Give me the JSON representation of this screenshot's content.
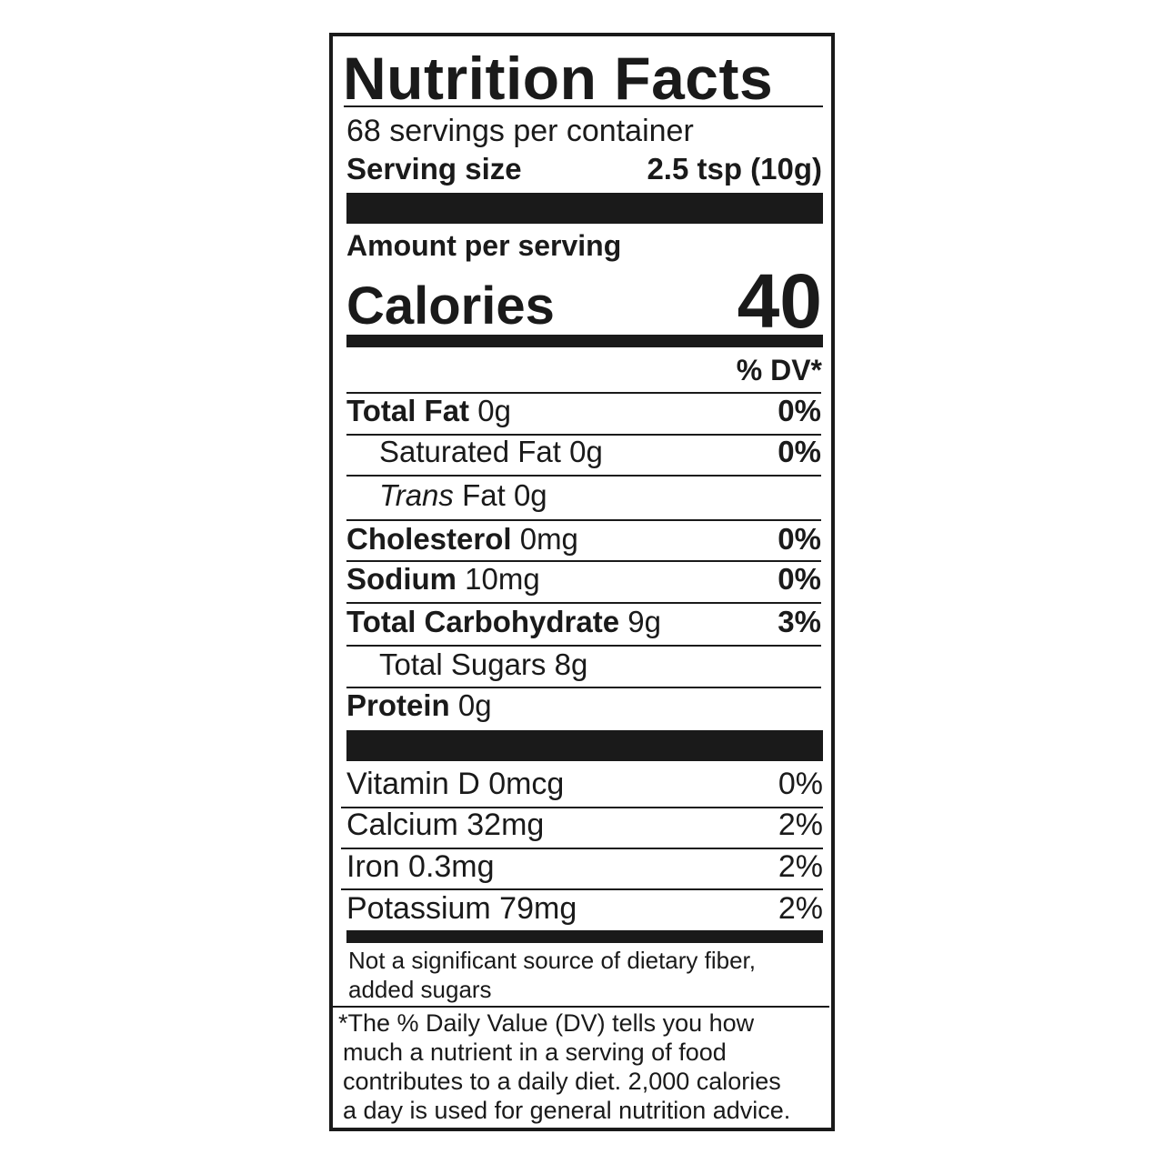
{
  "title": "Nutrition Facts",
  "servings_per_container": "68 servings per container",
  "serving_size": {
    "label": "Serving size",
    "value": "2.5 tsp (10g)"
  },
  "amount_per_serving": "Amount per serving",
  "calories": {
    "label": "Calories",
    "value": "40"
  },
  "dv_header": "% DV*",
  "nutrients": [
    {
      "name": "Total Fat",
      "amount": "0g",
      "dv": "0%"
    },
    {
      "name": "Saturated Fat",
      "amount": "0g",
      "dv": "0%"
    },
    {
      "name": "Trans",
      "name_suffix": "Fat",
      "amount": "0g",
      "dv": ""
    },
    {
      "name": "Cholesterol",
      "amount": "0mg",
      "dv": "0%"
    },
    {
      "name": "Sodium",
      "amount": "10mg",
      "dv": "0%"
    },
    {
      "name": "Total Carbohydrate",
      "amount": "9g",
      "dv": "3%"
    },
    {
      "name": "Total Sugars",
      "amount": "8g",
      "dv": ""
    },
    {
      "name": "Protein",
      "amount": "0g",
      "dv": ""
    }
  ],
  "vitamins": [
    {
      "label": "Vitamin D 0mcg",
      "dv": "0%"
    },
    {
      "label": "Calcium 32mg",
      "dv": "2%"
    },
    {
      "label": "Iron 0.3mg",
      "dv": "2%"
    },
    {
      "label": "Potassium 79mg",
      "dv": "2%"
    }
  ],
  "not_significant": [
    "Not a significant source of dietary fiber,",
    "added sugars"
  ],
  "footnote": [
    "*The % Daily Value (DV) tells you how",
    "much a nutrient in a serving of food",
    "contributes to a daily diet. 2,000 calories",
    "a day is used for general nutrition advice."
  ]
}
